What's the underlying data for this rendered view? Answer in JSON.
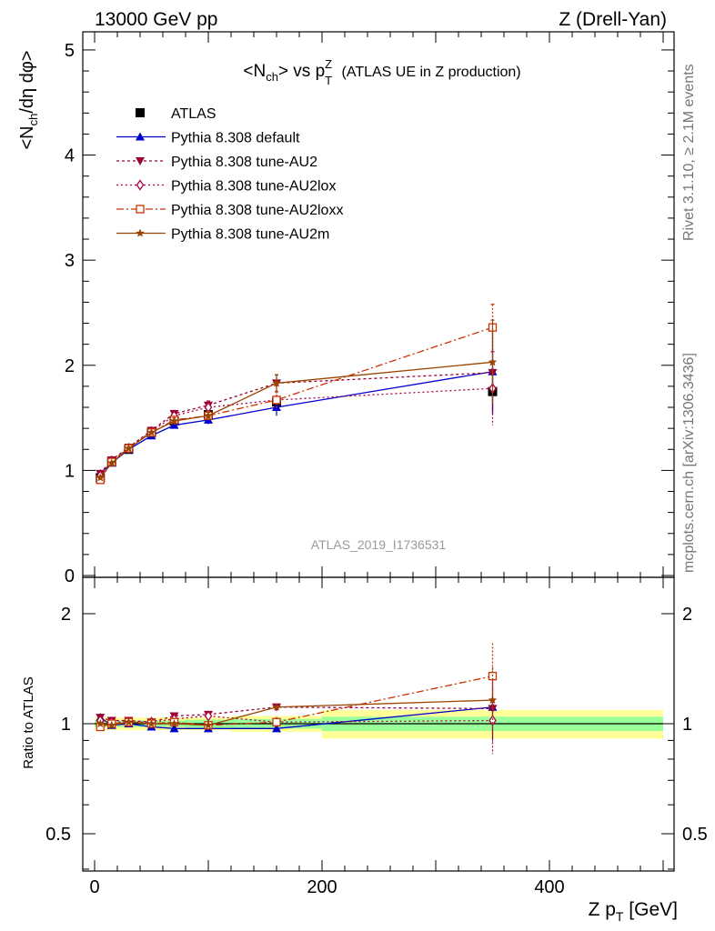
{
  "header": {
    "energy": "13000 GeV pp",
    "process": "Z (Drell-Yan)"
  },
  "side_labels": {
    "rivet": "Rivet 3.1.10, ≥ 2.1M events",
    "mcplots": "mcplots.cern.ch [arXiv:1306.3436]"
  },
  "watermark": "ATLAS_2019_I1736531",
  "colors": {
    "atlas": "#000000",
    "default": "#0000cc",
    "au2": "#990033",
    "au2lox": "#aa0044",
    "au2loxx": "#cc3300",
    "au2m": "#994400",
    "band_inner": "#99ff99",
    "band_outer": "#ffff99"
  },
  "chart_data": [
    {
      "type": "line",
      "panel": "main",
      "title": "<N_ch> vs p_T^Z (ATLAS UE in Z production)",
      "xlabel": "Z p_T [GeV]",
      "ylabel": "<N_ch/dη dφ>",
      "xlim": [
        -10,
        510
      ],
      "ylim": [
        0,
        5.1
      ],
      "yticks": [
        "0",
        "1",
        "2",
        "3",
        "4",
        "5"
      ],
      "legend_position": "top-left",
      "x": [
        5,
        15,
        30,
        50,
        70,
        100,
        160,
        350
      ],
      "series": [
        {
          "name": "ATLAS",
          "key": "atlas",
          "marker": "square",
          "dash": "none",
          "values": [
            0.93,
            1.08,
            1.2,
            1.36,
            1.47,
            1.53,
            1.65,
            1.75
          ],
          "errors": [
            0.02,
            0.02,
            0.02,
            0.02,
            0.03,
            0.03,
            0.05,
            0.18
          ]
        },
        {
          "name": "Pythia 8.308 default",
          "key": "default",
          "marker": "triangle-up",
          "dash": "none",
          "values": [
            0.97,
            1.07,
            1.2,
            1.33,
            1.43,
            1.48,
            1.6,
            1.94
          ],
          "errors": [
            0.01,
            0.01,
            0.02,
            0.02,
            0.03,
            0.04,
            0.08,
            0.4
          ]
        },
        {
          "name": "Pythia 8.308 tune-AU2",
          "key": "au2",
          "marker": "triangle-down",
          "dash": "3,3",
          "values": [
            0.97,
            1.1,
            1.22,
            1.38,
            1.54,
            1.62,
            1.83,
            1.93
          ],
          "errors": [
            0.01,
            0.01,
            0.02,
            0.02,
            0.03,
            0.04,
            0.08,
            0.4
          ]
        },
        {
          "name": "Pythia 8.308 tune-AU2lox",
          "key": "au2lox",
          "marker": "diamond-open",
          "dash": "2,3",
          "values": [
            0.95,
            1.09,
            1.21,
            1.37,
            1.52,
            1.6,
            1.67,
            1.78
          ],
          "errors": [
            0.01,
            0.01,
            0.02,
            0.02,
            0.03,
            0.04,
            0.08,
            0.35
          ]
        },
        {
          "name": "Pythia 8.308 tune-AU2loxx",
          "key": "au2loxx",
          "marker": "square-open",
          "dash": "8,3,2,3",
          "values": [
            0.91,
            1.08,
            1.21,
            1.36,
            1.48,
            1.52,
            1.67,
            2.36
          ],
          "errors": [
            0.01,
            0.01,
            0.02,
            0.02,
            0.03,
            0.04,
            0.08,
            0.22
          ]
        },
        {
          "name": "Pythia 8.308 tune-AU2m",
          "key": "au2m",
          "marker": "star",
          "dash": "none",
          "values": [
            0.93,
            1.07,
            1.21,
            1.36,
            1.47,
            1.52,
            1.83,
            2.03
          ],
          "errors": [
            0.01,
            0.01,
            0.02,
            0.02,
            0.03,
            0.04,
            0.08,
            0.4
          ]
        }
      ]
    },
    {
      "type": "line",
      "panel": "ratio",
      "ylabel": "Ratio to ATLAS",
      "xlabel": "Z p_T [GeV]",
      "xlim": [
        -10,
        510
      ],
      "ylim": [
        0.35,
        2.25
      ],
      "yticks": [
        "0.5",
        "1",
        "2"
      ],
      "xticks": [
        "0",
        "200",
        "400"
      ],
      "x": [
        5,
        15,
        30,
        50,
        70,
        100,
        160,
        350
      ],
      "bands": [
        {
          "x_range": [
            0,
            10
          ],
          "inner": 0.02,
          "outer": 0.04
        },
        {
          "x_range": [
            10,
            20
          ],
          "inner": 0.02,
          "outer": 0.04
        },
        {
          "x_range": [
            20,
            40
          ],
          "inner": 0.02,
          "outer": 0.04
        },
        {
          "x_range": [
            40,
            60
          ],
          "inner": 0.02,
          "outer": 0.04
        },
        {
          "x_range": [
            60,
            80
          ],
          "inner": 0.02,
          "outer": 0.04
        },
        {
          "x_range": [
            80,
            120
          ],
          "inner": 0.025,
          "outer": 0.04
        },
        {
          "x_range": [
            120,
            200
          ],
          "inner": 0.03,
          "outer": 0.05
        },
        {
          "x_range": [
            200,
            500
          ],
          "inner": 0.045,
          "outer": 0.09
        }
      ],
      "series": [
        {
          "name": "Pythia 8.308 default",
          "key": "default",
          "values": [
            1.04,
            0.99,
            1.0,
            0.98,
            0.97,
            0.97,
            0.97,
            1.11
          ]
        },
        {
          "name": "Pythia 8.308 tune-AU2",
          "key": "au2",
          "values": [
            1.04,
            1.02,
            1.02,
            1.01,
            1.05,
            1.06,
            1.11,
            1.1
          ]
        },
        {
          "name": "Pythia 8.308 tune-AU2lox",
          "key": "au2lox",
          "values": [
            1.02,
            1.01,
            1.01,
            1.01,
            1.03,
            1.05,
            1.01,
            1.02
          ]
        },
        {
          "name": "Pythia 8.308 tune-AU2loxx",
          "key": "au2loxx",
          "values": [
            0.98,
            1.0,
            1.01,
            1.0,
            1.01,
            0.99,
            1.01,
            1.35
          ]
        },
        {
          "name": "Pythia 8.308 tune-AU2m",
          "key": "au2m",
          "values": [
            1.0,
            0.99,
            1.01,
            1.0,
            1.0,
            0.99,
            1.11,
            1.16
          ]
        }
      ]
    }
  ]
}
